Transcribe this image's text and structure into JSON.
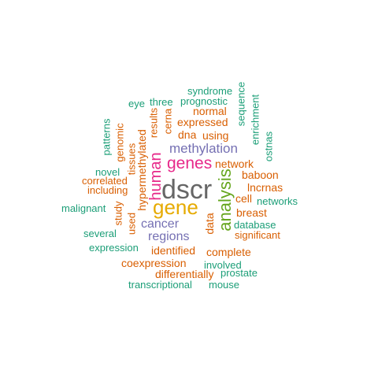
{
  "palette": {
    "green": "#1b9e77",
    "orange": "#d95f02",
    "purple": "#7570b3",
    "pink": "#e7298a",
    "olive": "#66a61e",
    "gold": "#e6ab02",
    "gray": "#666666"
  },
  "words": [
    {
      "text": "dscr",
      "color": "gray",
      "freq": 10
    },
    {
      "text": "analysis",
      "color": "olive",
      "freq": 7
    },
    {
      "text": "gene",
      "color": "gold",
      "freq": 6
    },
    {
      "text": "human",
      "color": "pink",
      "freq": 5
    },
    {
      "text": "genes",
      "color": "pink",
      "freq": 5
    },
    {
      "text": "methylation",
      "color": "purple",
      "freq": 4
    },
    {
      "text": "regions",
      "color": "purple",
      "freq": 4
    },
    {
      "text": "cancer",
      "color": "purple",
      "freq": 4
    },
    {
      "text": "network",
      "color": "orange",
      "freq": 3
    },
    {
      "text": "dna",
      "color": "orange",
      "freq": 3
    },
    {
      "text": "using",
      "color": "orange",
      "freq": 3
    },
    {
      "text": "expressed",
      "color": "orange",
      "freq": 3
    },
    {
      "text": "normal",
      "color": "orange",
      "freq": 3
    },
    {
      "text": "results",
      "color": "orange",
      "freq": 3
    },
    {
      "text": "hypermethylated",
      "color": "orange",
      "freq": 3
    },
    {
      "text": "tissues",
      "color": "orange",
      "freq": 3
    },
    {
      "text": "identified",
      "color": "orange",
      "freq": 3
    },
    {
      "text": "data",
      "color": "orange",
      "freq": 3
    },
    {
      "text": "breast",
      "color": "orange",
      "freq": 3
    },
    {
      "text": "lncrnas",
      "color": "orange",
      "freq": 3
    },
    {
      "text": "cell",
      "color": "orange",
      "freq": 3
    },
    {
      "text": "baboon",
      "color": "orange",
      "freq": 3
    },
    {
      "text": "cerna",
      "color": "orange",
      "freq": 3
    },
    {
      "text": "complete",
      "color": "orange",
      "freq": 3
    },
    {
      "text": "coexpression",
      "color": "orange",
      "freq": 3
    },
    {
      "text": "differentially",
      "color": "orange",
      "freq": 3
    },
    {
      "text": "significant",
      "color": "orange",
      "freq": 3
    },
    {
      "text": "correlated",
      "color": "orange",
      "freq": 3
    },
    {
      "text": "including",
      "color": "orange",
      "freq": 3
    },
    {
      "text": "used",
      "color": "orange",
      "freq": 3
    },
    {
      "text": "study",
      "color": "orange",
      "freq": 3
    },
    {
      "text": "genomic",
      "color": "orange",
      "freq": 3
    },
    {
      "text": "syndrome",
      "color": "green",
      "freq": 2
    },
    {
      "text": "prognostic",
      "color": "green",
      "freq": 2
    },
    {
      "text": "three",
      "color": "green",
      "freq": 2
    },
    {
      "text": "eye",
      "color": "green",
      "freq": 2
    },
    {
      "text": "sequence",
      "color": "green",
      "freq": 2
    },
    {
      "text": "enrichment",
      "color": "green",
      "freq": 2
    },
    {
      "text": "ostnas",
      "color": "green",
      "freq": 2
    },
    {
      "text": "patterns",
      "color": "green",
      "freq": 2
    },
    {
      "text": "novel",
      "color": "green",
      "freq": 2
    },
    {
      "text": "malignant",
      "color": "green",
      "freq": 2
    },
    {
      "text": "several",
      "color": "green",
      "freq": 2
    },
    {
      "text": "expression",
      "color": "green",
      "freq": 2
    },
    {
      "text": "networks",
      "color": "green",
      "freq": 2
    },
    {
      "text": "database",
      "color": "green",
      "freq": 2
    },
    {
      "text": "involved",
      "color": "green",
      "freq": 2
    },
    {
      "text": "prostate",
      "color": "green",
      "freq": 2
    },
    {
      "text": "mouse",
      "color": "green",
      "freq": 2
    },
    {
      "text": "transcriptional",
      "color": "green",
      "freq": 2
    }
  ]
}
